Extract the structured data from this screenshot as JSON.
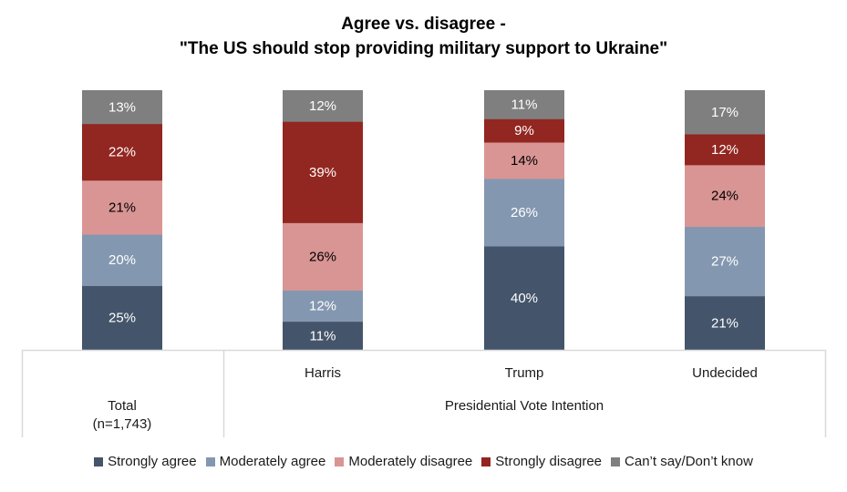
{
  "chart_data": {
    "type": "bar",
    "stacked": true,
    "title": "Agree vs. disagree -",
    "subtitle": "\"The US should stop providing military support to Ukraine\"",
    "categories": [
      "Total",
      "Harris",
      "Trump",
      "Undecided"
    ],
    "category_labels": {
      "total": "Total",
      "total_n": "(n=1,743)",
      "harris": "Harris",
      "trump": "Trump",
      "undecided": "Undecided",
      "group": "Presidential Vote Intention"
    },
    "series": [
      {
        "name": "Strongly agree",
        "color": "#44546A",
        "label_color": "#ffffff",
        "values": [
          25,
          11,
          40,
          21
        ]
      },
      {
        "name": "Moderately agree",
        "color": "#8497B0",
        "label_color": "#ffffff",
        "values": [
          20,
          12,
          26,
          27
        ]
      },
      {
        "name": "Moderately disagree",
        "color": "#D99594",
        "label_color": "#000000",
        "values": [
          21,
          26,
          14,
          24
        ]
      },
      {
        "name": "Strongly disagree",
        "color": "#922620",
        "label_color": "#ffffff",
        "values": [
          22,
          39,
          9,
          12
        ]
      },
      {
        "name": "Can’t say/Don’t know",
        "color": "#7F7F7F",
        "label_color": "#ffffff",
        "values": [
          13,
          12,
          11,
          17
        ]
      }
    ],
    "value_suffix": "%",
    "ylim": [
      0,
      100
    ],
    "xlabel": "",
    "ylabel": "",
    "grid": false,
    "legend_position": "bottom"
  }
}
